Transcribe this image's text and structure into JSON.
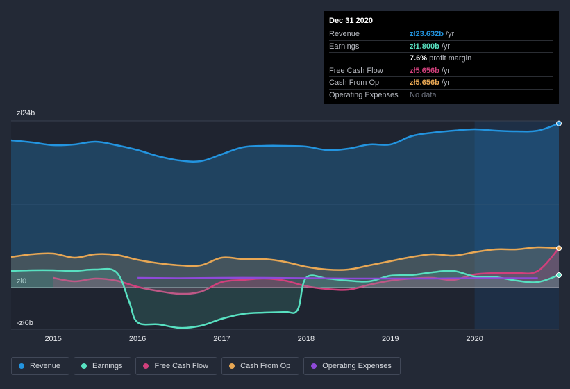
{
  "chart_data": {
    "type": "area",
    "title": "",
    "y_axis": {
      "ylim": [
        -6,
        24
      ],
      "tick_labels": [
        "zł24b",
        "zł0",
        "-zł6b"
      ],
      "tick_values": [
        24,
        0,
        -6
      ]
    },
    "x_axis": {
      "xlim": [
        2014.5,
        2021.0
      ],
      "tick_labels": [
        "2015",
        "2016",
        "2017",
        "2018",
        "2019",
        "2020"
      ],
      "tick_values": [
        2015,
        2016,
        2017,
        2018,
        2019,
        2020
      ]
    },
    "forecast_start": 2020.0,
    "series": [
      {
        "name": "Revenue",
        "color": "#2394df",
        "x": [
          2014.5,
          2014.75,
          2015.0,
          2015.25,
          2015.5,
          2015.75,
          2016.0,
          2016.25,
          2016.5,
          2016.75,
          2017.0,
          2017.25,
          2017.5,
          2017.75,
          2018.0,
          2018.25,
          2018.5,
          2018.75,
          2019.0,
          2019.25,
          2019.5,
          2019.75,
          2020.0,
          2020.25,
          2020.5,
          2020.75,
          2021.0
        ],
        "values": [
          21.2,
          20.9,
          20.5,
          20.6,
          21.0,
          20.5,
          19.8,
          18.9,
          18.3,
          18.2,
          19.2,
          20.2,
          20.4,
          20.4,
          20.3,
          19.8,
          20.0,
          20.6,
          20.6,
          21.8,
          22.3,
          22.6,
          22.8,
          22.6,
          22.5,
          22.6,
          23.632
        ]
      },
      {
        "name": "Earnings",
        "color": "#58e1c1",
        "x": [
          2014.5,
          2014.75,
          2015.0,
          2015.25,
          2015.5,
          2015.75,
          2015.9,
          2016.0,
          2016.25,
          2016.5,
          2016.75,
          2017.0,
          2017.25,
          2017.5,
          2017.75,
          2017.9,
          2018.0,
          2018.25,
          2018.5,
          2018.75,
          2019.0,
          2019.25,
          2019.5,
          2019.75,
          2020.0,
          2020.25,
          2020.5,
          2020.75,
          2021.0
        ],
        "values": [
          2.4,
          2.5,
          2.5,
          2.4,
          2.6,
          2.2,
          -2.0,
          -5.0,
          -5.3,
          -5.8,
          -5.5,
          -4.5,
          -3.8,
          -3.6,
          -3.5,
          -3.2,
          1.4,
          1.3,
          1.0,
          0.9,
          1.7,
          1.8,
          2.2,
          2.4,
          1.6,
          1.5,
          1.0,
          0.8,
          1.8
        ]
      },
      {
        "name": "Free Cash Flow",
        "color": "#d1407c",
        "x": [
          2015.0,
          2015.25,
          2015.5,
          2015.75,
          2016.0,
          2016.25,
          2016.5,
          2016.75,
          2017.0,
          2017.25,
          2017.5,
          2017.75,
          2018.0,
          2018.25,
          2018.5,
          2018.75,
          2019.0,
          2019.25,
          2019.5,
          2019.75,
          2020.0,
          2020.25,
          2020.5,
          2020.75,
          2021.0
        ],
        "values": [
          1.4,
          0.9,
          1.3,
          1.0,
          0.1,
          -0.5,
          -0.9,
          -0.6,
          0.8,
          1.1,
          1.3,
          1.0,
          0.2,
          -0.2,
          -0.3,
          0.4,
          1.0,
          1.3,
          1.4,
          1.1,
          1.9,
          2.1,
          2.1,
          2.4,
          5.656
        ]
      },
      {
        "name": "Cash From Op",
        "color": "#e8a754",
        "x": [
          2014.5,
          2014.75,
          2015.0,
          2015.25,
          2015.5,
          2015.75,
          2016.0,
          2016.25,
          2016.5,
          2016.75,
          2017.0,
          2017.25,
          2017.5,
          2017.75,
          2018.0,
          2018.25,
          2018.5,
          2018.75,
          2019.0,
          2019.25,
          2019.5,
          2019.75,
          2020.0,
          2020.25,
          2020.5,
          2020.75,
          2021.0
        ],
        "values": [
          4.4,
          4.8,
          4.9,
          4.3,
          4.8,
          4.7,
          4.0,
          3.5,
          3.2,
          3.2,
          4.3,
          4.1,
          4.1,
          3.7,
          3.0,
          2.6,
          2.6,
          3.2,
          3.8,
          4.4,
          4.8,
          4.6,
          5.1,
          5.5,
          5.5,
          5.8,
          5.656
        ]
      },
      {
        "name": "Operating Expenses",
        "color": "#8e4ad8",
        "x": [
          2016.0,
          2016.5,
          2017.0,
          2017.5,
          2018.0,
          2018.5,
          2019.0,
          2019.5,
          2020.0,
          2020.75
        ],
        "values": [
          1.4,
          1.35,
          1.4,
          1.4,
          1.35,
          1.3,
          1.3,
          1.3,
          1.35,
          1.35
        ]
      }
    ]
  },
  "tooltip": {
    "date": "Dec 31 2020",
    "rows": [
      {
        "label": "Revenue",
        "value": "zł23.632b",
        "unit": "/yr",
        "color": "#2394df"
      },
      {
        "label": "Earnings",
        "value": "zł1.800b",
        "unit": "/yr",
        "color": "#58e1c1"
      },
      {
        "label": "",
        "value": "7.6%",
        "unit": "profit margin",
        "color": "#ffffff"
      },
      {
        "label": "Free Cash Flow",
        "value": "zł5.656b",
        "unit": "/yr",
        "color": "#d1407c"
      },
      {
        "label": "Cash From Op",
        "value": "zł5.656b",
        "unit": "/yr",
        "color": "#e8a754"
      },
      {
        "label": "Operating Expenses",
        "value": "No data",
        "unit": "",
        "color": "#6f7480"
      }
    ]
  },
  "legend": [
    {
      "label": "Revenue",
      "color": "#2394df"
    },
    {
      "label": "Earnings",
      "color": "#58e1c1"
    },
    {
      "label": "Free Cash Flow",
      "color": "#d1407c"
    },
    {
      "label": "Cash From Op",
      "color": "#e8a754"
    },
    {
      "label": "Operating Expenses",
      "color": "#8e4ad8"
    }
  ]
}
